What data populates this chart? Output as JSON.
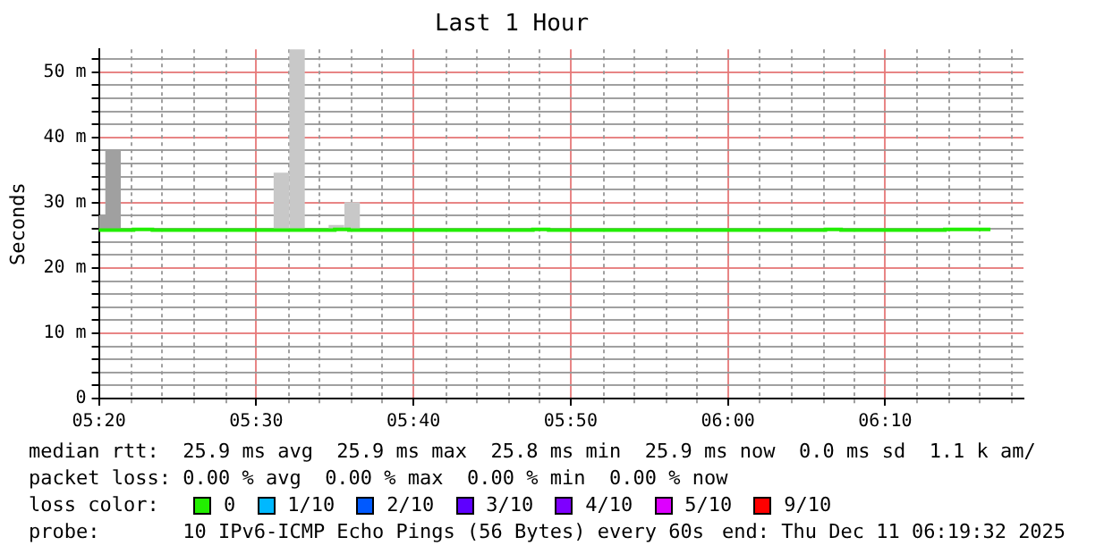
{
  "chart_data": {
    "type": "bar",
    "title": "Last 1 Hour",
    "ylabel": "Seconds",
    "xlim": [
      5.3333,
      6.3133
    ],
    "xticks": [
      {
        "value": 5.3333,
        "label": "05:20"
      },
      {
        "value": 5.5,
        "label": "05:30"
      },
      {
        "value": 5.6667,
        "label": "05:40"
      },
      {
        "value": 5.8333,
        "label": "05:50"
      },
      {
        "value": 6.0,
        "label": "06:00"
      },
      {
        "value": 6.1667,
        "label": "06:10"
      }
    ],
    "ylim": [
      0,
      53.5
    ],
    "yticks": [
      0,
      {
        "value": 2,
        "label": null
      },
      {
        "value": 4,
        "label": null
      },
      {
        "value": 6,
        "label": null
      },
      {
        "value": 8,
        "label": null
      },
      {
        "value": 10,
        "label": "10 m"
      },
      {
        "value": 12,
        "label": null
      },
      {
        "value": 14,
        "label": null
      },
      {
        "value": 16,
        "label": null
      },
      {
        "value": 18,
        "label": null
      },
      {
        "value": 20,
        "label": "20 m"
      },
      {
        "value": 22,
        "label": null
      },
      {
        "value": 24,
        "label": null
      },
      {
        "value": 26,
        "label": null
      },
      {
        "value": 28,
        "label": null
      },
      {
        "value": 30,
        "label": "30 m"
      },
      {
        "value": 32,
        "label": null
      },
      {
        "value": 34,
        "label": null
      },
      {
        "value": 36,
        "label": null
      },
      {
        "value": 38,
        "label": null
      },
      {
        "value": 40,
        "label": "40 m"
      },
      {
        "value": 42,
        "label": null
      },
      {
        "value": 44,
        "label": null
      },
      {
        "value": 46,
        "label": null
      },
      {
        "value": 48,
        "label": null
      },
      {
        "value": 50,
        "label": "50 m"
      },
      {
        "value": 52,
        "label": null
      }
    ],
    "grid": true,
    "legend": false,
    "series": [
      {
        "type": "bar",
        "x": [
          5.3375,
          5.3483,
          5.5267,
          5.5433,
          5.585,
          5.6017
        ],
        "base": [
          25.9,
          25.9,
          25.9,
          25.9,
          25.9,
          25.9
        ],
        "values": [
          2.1,
          12.1,
          8.6,
          27.6,
          0.6,
          4.1
        ],
        "colors": [
          "#a0a0a0",
          "#a0a0a0",
          "#c8c8c8",
          "#c8c8c8",
          "#c8c8c8",
          "#c8c8c8"
        ]
      },
      {
        "type": "step",
        "color": "#22ee00",
        "x": [
          5.3333,
          5.37,
          5.39,
          5.5833,
          5.5983,
          5.7933,
          5.81,
          6.1033,
          6.12,
          6.23,
          6.2467,
          6.2783
        ],
        "values": [
          25.9,
          25.8,
          25.9,
          25.8,
          25.9,
          25.8,
          25.9,
          25.8,
          25.9,
          25.8,
          25.9,
          25.9
        ]
      }
    ],
    "annotations": [
      "median rtt:  25.9 ms avg  25.9 ms max  25.8 ms min  25.9 ms now  0.0 ms sd  1.1 k am/",
      "packet loss: 0.00 % avg  0.00 % max  0.00 % min  0.00 % now",
      "loss color:",
      "0",
      "1/10",
      "2/10",
      "3/10",
      "4/10",
      "5/10",
      "9/10",
      "probe:       10 IPv6-ICMP Echo Pings (56 Bytes) every 60s",
      "end: Thu Dec 11 06:19:32 2025"
    ]
  }
}
